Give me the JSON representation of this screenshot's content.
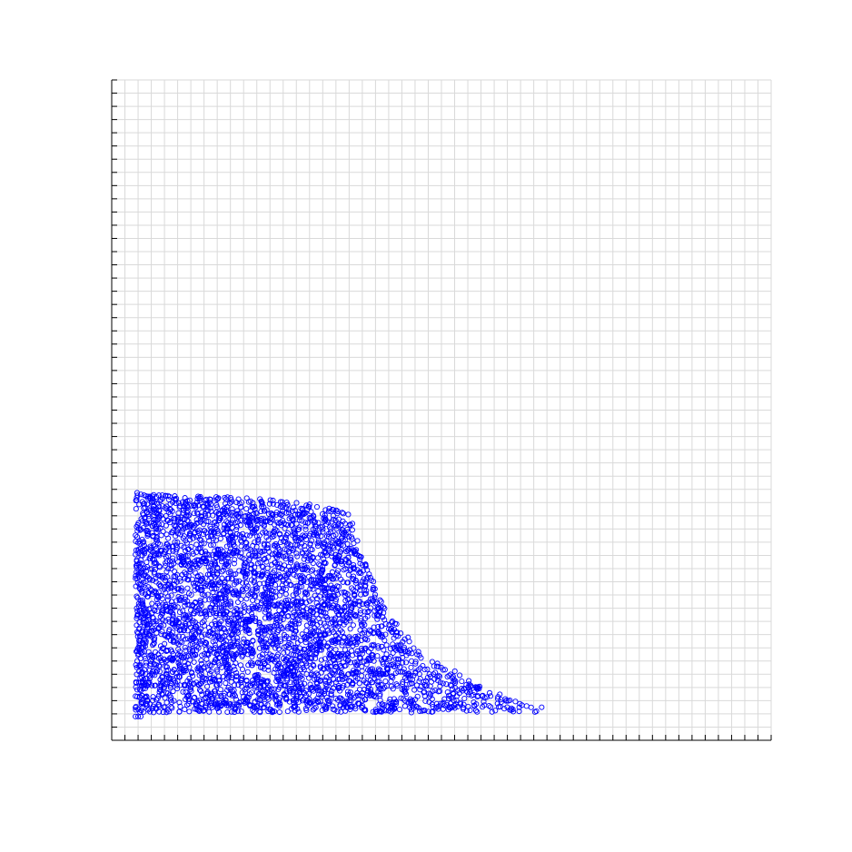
{
  "chart_data": {
    "type": "scatter",
    "title": "",
    "xlabel": "",
    "ylabel": "",
    "xlim": [
      0,
      50
    ],
    "ylim": [
      0,
      50
    ],
    "grid": true,
    "tick_labels_shown": false,
    "marker": "open-circle",
    "colors": {
      "marker": "#0000ff",
      "grid": "#d9d9d9",
      "axis": "#000000",
      "background": "#ffffff"
    },
    "series": [
      {
        "point_count": 4200,
        "profile": {
          "x": [
            1.8,
            2.5,
            5.0,
            10.0,
            15.0,
            17.5,
            18.1,
            19.0,
            21.0,
            23.0,
            25.0,
            27.0,
            29.0,
            31.0,
            32.5
          ],
          "top_y": [
            18.8,
            18.7,
            18.5,
            18.4,
            17.9,
            17.4,
            17.2,
            14.0,
            9.5,
            7.2,
            5.8,
            4.7,
            3.7,
            2.8,
            2.4
          ]
        },
        "floor_y": 2.1,
        "edge_points": [
          [
            1.8,
            1.8
          ],
          [
            2.0,
            1.8
          ],
          [
            2.2,
            1.8
          ],
          [
            30.9,
            2.5
          ],
          [
            32.2,
            2.2
          ],
          [
            32.6,
            2.5
          ]
        ]
      }
    ]
  }
}
